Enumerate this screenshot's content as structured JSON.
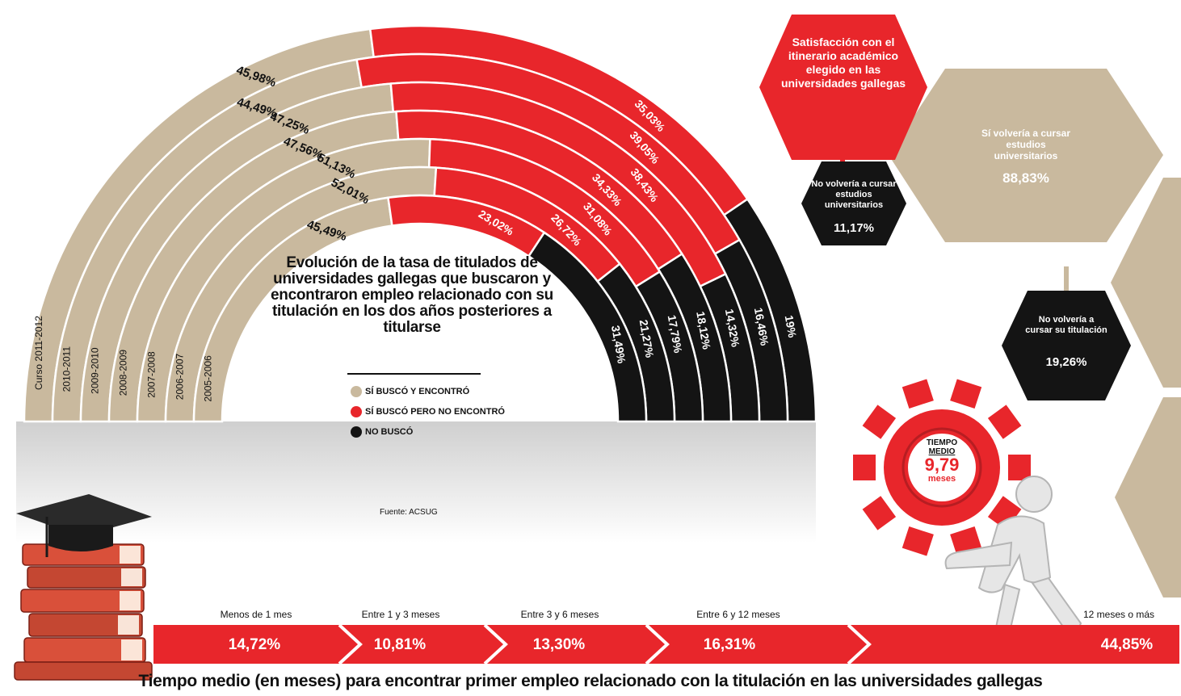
{
  "chart_data": {
    "type": "stacked-semicircle",
    "title": "Evolución de la tasa de titulados de universidades gallegas que buscaron y encontraron empleo relacionado con su titulación en los dos años posteriores a titularse",
    "categories": [
      "Curso 2011-2012",
      "2010-2011",
      "2009-2010",
      "2008-2009",
      "2007-2008",
      "2006-2007",
      "2005-2006"
    ],
    "series": [
      {
        "name": "SÍ BUSCÓ Y ENCONTRÓ",
        "color": "#c9b99e",
        "values": [
          45.98,
          44.49,
          47.25,
          47.56,
          51.13,
          52.01,
          45.49
        ],
        "labels": [
          "45,98%",
          "44,49%",
          "47,25%",
          "47,56%",
          "51,13%",
          "52,01%",
          "45,49%"
        ]
      },
      {
        "name": "SÍ BUSCÓ PERO NO ENCONTRÓ",
        "color": "#e8262b",
        "values": [
          35.03,
          39.05,
          38.43,
          34.33,
          31.08,
          26.72,
          23.02
        ],
        "labels": [
          "35,03%",
          "39,05%",
          "38,43%",
          "34,33%",
          "31,08%",
          "26,72%",
          "23,02%"
        ]
      },
      {
        "name": "NO BUSCÓ",
        "color": "#141414",
        "values": [
          19,
          16.46,
          14.32,
          18.12,
          17.79,
          21.27,
          31.49
        ],
        "labels": [
          "19%",
          "16,46%",
          "14,32%",
          "18,12%",
          "17,79%",
          "21,27%",
          "31,49%"
        ]
      }
    ],
    "source": "Fuente: ACSUG"
  },
  "satisfaction": {
    "title": "Satisfacción con el itinerario académico elegido en las universidades gallegas",
    "yes_label": "Sí volvería a cursar estudios universitarios",
    "yes_value": "88,83%",
    "no_label": "No volvería a cursar estudios universitarios",
    "no_value": "11,17%",
    "no_title_label": "No volvería a cursar su titulación",
    "no_title_value": "19,26%",
    "colors": {
      "red": "#e8262b",
      "beige": "#c9b99e",
      "black": "#141414"
    }
  },
  "gear": {
    "line1": "TIEMPO",
    "line2": "MEDIO",
    "value": "9,79",
    "unit": "meses"
  },
  "time_to_job": {
    "title": "Tiempo medio (en meses) para encontrar primer empleo relacionado con la titulación en las universidades gallegas",
    "segments": [
      {
        "label": "Menos de 1 mes",
        "value": "14,72%"
      },
      {
        "label": "Entre 1 y 3 meses",
        "value": "10,81%"
      },
      {
        "label": "Entre 3 y 6 meses",
        "value": "13,30%"
      },
      {
        "label": "Entre 6 y 12 meses",
        "value": "16,31%"
      },
      {
        "label": "12 meses o más",
        "value": "44,85%"
      }
    ]
  }
}
